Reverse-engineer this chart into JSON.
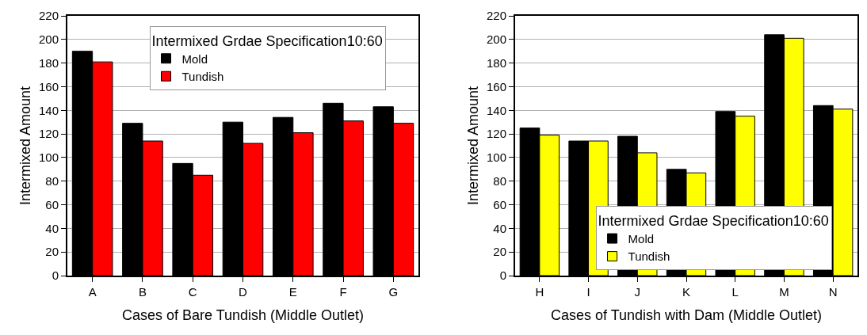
{
  "chart_data": [
    {
      "type": "bar",
      "xlabel": "Cases of Bare Tundish (Middle Outlet)",
      "ylabel": "Intermixed Amount",
      "legend_title": "Intermixed Grdae Specification10:60",
      "categories": [
        "A",
        "B",
        "C",
        "D",
        "E",
        "F",
        "G"
      ],
      "series": [
        {
          "name": "Mold",
          "color": "#000000",
          "values": [
            190,
            129,
            95,
            130,
            134,
            146,
            143
          ]
        },
        {
          "name": "Tundish",
          "color": "#ff0000",
          "values": [
            181,
            114,
            85,
            112,
            121,
            131,
            129
          ]
        }
      ],
      "ylim": [
        0,
        220
      ],
      "yticks": [
        0,
        20,
        40,
        60,
        80,
        100,
        120,
        140,
        160,
        180,
        200,
        220
      ],
      "grid": "y",
      "legend": "top"
    },
    {
      "type": "bar",
      "xlabel": "Cases of Tundish with Dam (Middle Outlet)",
      "ylabel": "Intermixed Amount",
      "legend_title": "Intermixed Grdae Specification10:60",
      "categories": [
        "H",
        "I",
        "J",
        "K",
        "L",
        "M",
        "N"
      ],
      "series": [
        {
          "name": "Mold",
          "color": "#000000",
          "values": [
            125,
            114,
            118,
            90,
            139,
            204,
            144
          ]
        },
        {
          "name": "Tundish",
          "color": "#ffff00",
          "values": [
            119,
            114,
            104,
            87,
            135,
            201,
            141
          ]
        }
      ],
      "ylim": [
        0,
        220
      ],
      "yticks": [
        0,
        20,
        40,
        60,
        80,
        100,
        120,
        140,
        160,
        180,
        200,
        220
      ],
      "grid": "y",
      "legend": "bottom"
    }
  ]
}
